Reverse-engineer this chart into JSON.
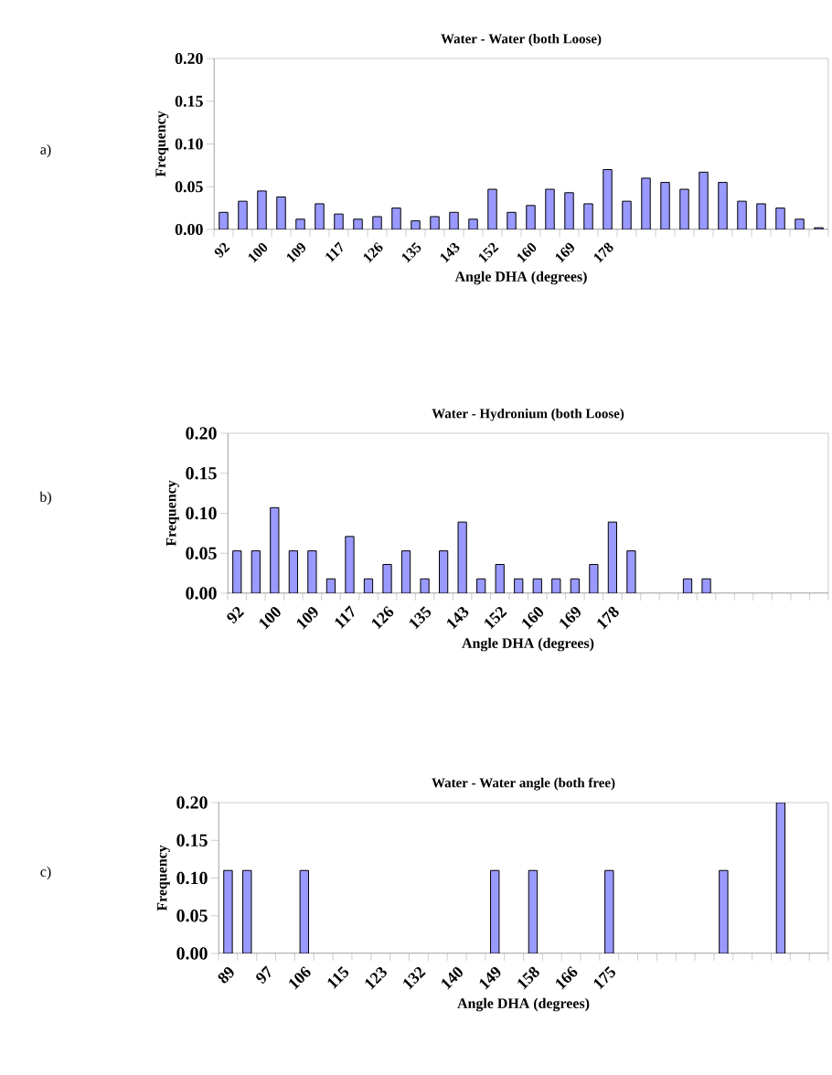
{
  "chart_data": [
    {
      "type": "bar",
      "title": "Water - Water  (both Loose)",
      "xlabel": "Angle DHA (degrees)",
      "ylabel": "Frequency",
      "color": "#9999ff",
      "annotations": [
        "a)"
      ],
      "categories": [
        "92",
        null,
        "100",
        null,
        "109",
        null,
        "117",
        null,
        "126",
        null,
        "135",
        null,
        "143",
        null,
        "152",
        null,
        "160",
        null,
        "169",
        null,
        "178",
        null,
        null,
        null,
        null,
        null,
        null,
        null,
        null,
        null,
        null,
        null
      ],
      "values": [
        0.02,
        0.033,
        0.045,
        0.038,
        0.012,
        0.03,
        0.018,
        0.012,
        0.015,
        0.025,
        0.01,
        0.015,
        0.02,
        0.012,
        0.047,
        0.02,
        0.028,
        0.047,
        0.043,
        0.03,
        0.07,
        0.033,
        0.06,
        0.055,
        0.047,
        0.067,
        0.055,
        0.033,
        0.03,
        0.025,
        0.012,
        0.002
      ],
      "ylim": [
        0,
        0.2
      ],
      "yticks": [
        {
          "value": 0,
          "label": "0.00"
        },
        {
          "value": 0.05,
          "label": "0.05"
        },
        {
          "value": 0.1,
          "label": "0.10"
        },
        {
          "value": 0.15,
          "label": "0.15"
        },
        {
          "value": 0.2,
          "label": "0.20"
        }
      ]
    },
    {
      "type": "bar",
      "title": "Water - Hydronium  (both Loose)",
      "xlabel": "Angle DHA (degrees)",
      "ylabel": "Frequency",
      "color": "#9999ff",
      "annotations": [
        "b)"
      ],
      "categories": [
        "92",
        null,
        "100",
        null,
        "109",
        null,
        "117",
        null,
        "126",
        null,
        "135",
        null,
        "143",
        null,
        "152",
        null,
        "160",
        null,
        "169",
        null,
        "178",
        null,
        null,
        null,
        null,
        null,
        null,
        null,
        null,
        null,
        null,
        null
      ],
      "values": [
        0.053,
        0.053,
        0.107,
        0.053,
        0.053,
        0.018,
        0.071,
        0.018,
        0.036,
        0.053,
        0.018,
        0.053,
        0.089,
        0.018,
        0.036,
        0.018,
        0.018,
        0.018,
        0.018,
        0.036,
        0.089,
        0.053,
        null,
        null,
        0.018,
        0.018,
        null,
        null,
        null,
        null,
        null,
        null
      ],
      "ylim": [
        0,
        0.2
      ],
      "yticks": [
        {
          "value": 0,
          "label": "0.00"
        },
        {
          "value": 0.05,
          "label": "0.05"
        },
        {
          "value": 0.1,
          "label": "0.10"
        },
        {
          "value": 0.15,
          "label": "0.15"
        },
        {
          "value": 0.2,
          "label": "0.20"
        }
      ]
    },
    {
      "type": "bar",
      "title": "Water - Water  angle (both free)",
      "xlabel": "Angle DHA (degrees)",
      "ylabel": "Frequency",
      "color": "#9999ff",
      "annotations": [
        "c)"
      ],
      "categories": [
        "89",
        null,
        "97",
        null,
        "106",
        null,
        "115",
        null,
        "123",
        null,
        "132",
        null,
        "140",
        null,
        "149",
        null,
        "158",
        null,
        "166",
        null,
        "175",
        null,
        null,
        null,
        null,
        null,
        null,
        null,
        null,
        null,
        null,
        null
      ],
      "values": [
        0.11,
        0.11,
        null,
        null,
        0.11,
        null,
        null,
        null,
        null,
        null,
        null,
        null,
        null,
        null,
        0.11,
        null,
        0.11,
        null,
        null,
        null,
        0.11,
        null,
        null,
        null,
        null,
        null,
        0.11,
        null,
        null,
        0.2,
        null,
        null
      ],
      "ylim": [
        0,
        0.2
      ],
      "yticks": [
        {
          "value": 0,
          "label": "0.00"
        },
        {
          "value": 0.05,
          "label": "0.05"
        },
        {
          "value": 0.1,
          "label": "0.10"
        },
        {
          "value": 0.15,
          "label": "0.15"
        },
        {
          "value": 0.2,
          "label": "0.20"
        }
      ]
    }
  ]
}
